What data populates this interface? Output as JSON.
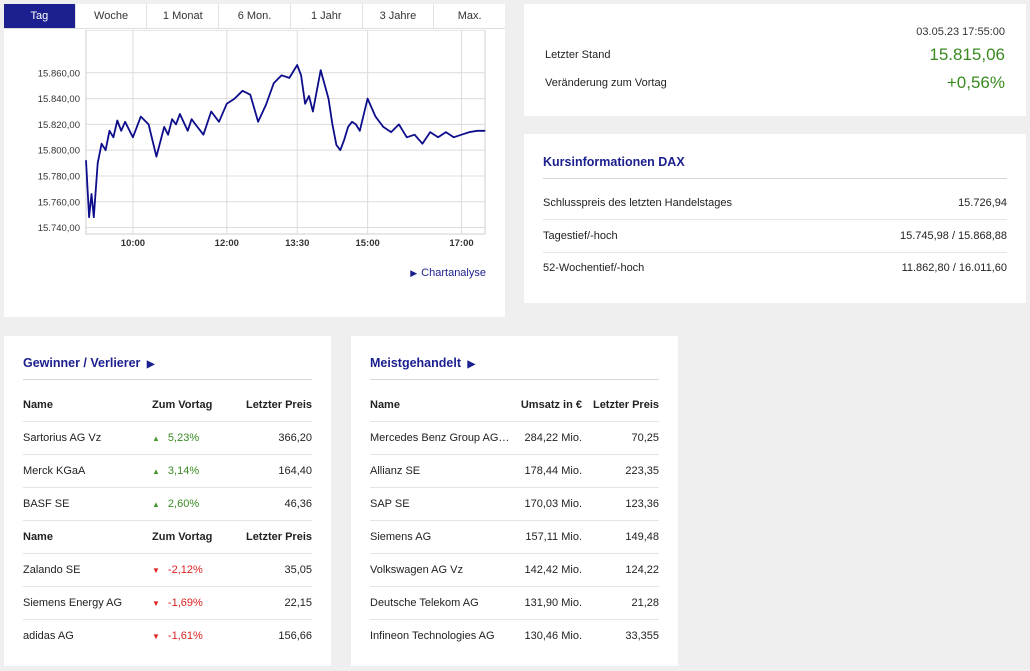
{
  "chart": {
    "tabs": [
      "Tag",
      "Woche",
      "1 Monat",
      "6 Mon.",
      "1 Jahr",
      "3 Jahre",
      "Max."
    ],
    "active_tab": 0,
    "link_label": "Chartanalyse",
    "y_ticks": [
      "15.860,00",
      "15.840,00",
      "15.820,00",
      "15.800,00",
      "15.780,00",
      "15.760,00",
      "15.740,00"
    ],
    "x_ticks": [
      "10:00",
      "12:00",
      "13:30",
      "15:00",
      "17:00"
    ],
    "line_color": "#0d0d8c"
  },
  "chart_data": {
    "type": "line",
    "title": "",
    "xlabel": "",
    "ylabel": "",
    "x_ticks": [
      "10:00",
      "12:00",
      "13:30",
      "15:00",
      "17:00"
    ],
    "ylim": [
      15735,
      15873
    ],
    "series": [
      {
        "x": [
          "09:00",
          "09:04",
          "09:07",
          "09:10",
          "09:15",
          "09:20",
          "09:25",
          "09:30",
          "09:35",
          "09:40",
          "09:45",
          "09:50",
          "10:00",
          "10:10",
          "10:20",
          "10:30",
          "10:40",
          "10:45",
          "10:50",
          "10:55",
          "11:00",
          "11:10",
          "11:15",
          "11:20",
          "11:30",
          "11:40",
          "11:50",
          "12:00",
          "12:10",
          "12:20",
          "12:30",
          "12:40",
          "12:50",
          "13:00",
          "13:10",
          "13:20",
          "13:30",
          "13:35",
          "13:40",
          "13:45",
          "13:50",
          "14:00",
          "14:10",
          "14:15",
          "14:20",
          "14:25",
          "14:30",
          "14:35",
          "14:40",
          "14:45",
          "14:50",
          "15:00",
          "15:10",
          "15:20",
          "15:30",
          "15:40",
          "15:50",
          "16:00",
          "16:10",
          "16:20",
          "16:30",
          "16:40",
          "16:50",
          "17:00",
          "17:10",
          "17:20",
          "17:30"
        ],
        "values": [
          15792,
          15748,
          15766,
          15748,
          15790,
          15805,
          15800,
          15815,
          15810,
          15823,
          15815,
          15822,
          15810,
          15826,
          15820,
          15795,
          15818,
          15812,
          15824,
          15820,
          15828,
          15815,
          15824,
          15820,
          15812,
          15830,
          15822,
          15836,
          15840,
          15846,
          15843,
          15822,
          15835,
          15852,
          15858,
          15856,
          15866,
          15858,
          15836,
          15842,
          15830,
          15862,
          15840,
          15820,
          15804,
          15800,
          15808,
          15818,
          15822,
          15820,
          15815,
          15840,
          15826,
          15818,
          15814,
          15820,
          15810,
          15812,
          15805,
          15814,
          15810,
          15814,
          15810,
          15812,
          15814,
          15815,
          15815
        ]
      }
    ]
  },
  "quote": {
    "date": "03.05.23 17:55:00",
    "last_label": "Letzter Stand",
    "last_value": "15.815,06",
    "change_label": "Veränderung zum Vortag",
    "change_value": "+0,56%",
    "value_color": "#3a8a22"
  },
  "info": {
    "title": "Kursinformationen DAX",
    "rows": [
      {
        "label": "Schlusspreis des letzten Handelstages",
        "value": "15.726,94"
      },
      {
        "label": "Tagestief/-hoch",
        "value": "15.745,98 / 15.868,88"
      },
      {
        "label": "52-Wochentief/-hoch",
        "value": "11.862,80 / 16.011,60"
      }
    ]
  },
  "gainers_losers": {
    "title": "Gewinner / Verlierer",
    "headers": {
      "name": "Name",
      "change": "Zum Vortag",
      "price": "Letzter Preis"
    },
    "gainers": [
      {
        "name": "Sartorius AG Vz",
        "change": "5,23%",
        "price": "366,20"
      },
      {
        "name": "Merck KGaA",
        "change": "3,14%",
        "price": "164,40"
      },
      {
        "name": "BASF SE",
        "change": "2,60%",
        "price": "46,36"
      }
    ],
    "losers": [
      {
        "name": "Zalando SE",
        "change": "-2,12%",
        "price": "35,05"
      },
      {
        "name": "Siemens Energy AG",
        "change": "-1,69%",
        "price": "22,15"
      },
      {
        "name": "adidas AG",
        "change": "-1,61%",
        "price": "156,66"
      }
    ],
    "up_color": "#3a8a22",
    "down_color": "#d22222"
  },
  "most_traded": {
    "title": "Meistgehandelt",
    "headers": {
      "name": "Name",
      "volume": "Umsatz in €",
      "price": "Letzter Preis"
    },
    "rows": [
      {
        "name": "Mercedes Benz Group AG ...",
        "volume": "284,22 Mio.",
        "price": "70,25"
      },
      {
        "name": "Allianz SE",
        "volume": "178,44 Mio.",
        "price": "223,35"
      },
      {
        "name": "SAP SE",
        "volume": "170,03 Mio.",
        "price": "123,36"
      },
      {
        "name": "Siemens AG",
        "volume": "157,11 Mio.",
        "price": "149,48"
      },
      {
        "name": "Volkswagen AG Vz",
        "volume": "142,42 Mio.",
        "price": "124,22"
      },
      {
        "name": "Deutsche Telekom AG",
        "volume": "131,90 Mio.",
        "price": "21,28"
      },
      {
        "name": "Infineon Technologies AG",
        "volume": "130,46 Mio.",
        "price": "33,355"
      }
    ]
  },
  "icons": {
    "title_arrow": "play-triangle-icon",
    "link_arrow": "play-triangle-icon",
    "up": "triangle-up-icon",
    "down": "triangle-down-icon"
  }
}
